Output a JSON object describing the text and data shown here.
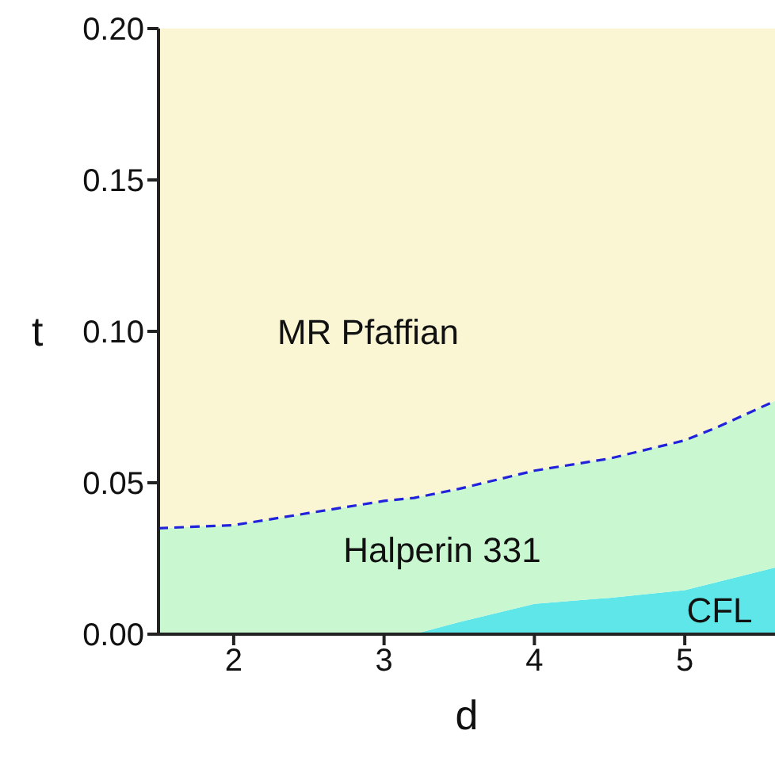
{
  "chart_data": {
    "type": "area",
    "stacked": true,
    "xlabel": "d",
    "ylabel": "t",
    "x": [
      1.5,
      2,
      2.5,
      3,
      3.2,
      3.5,
      4,
      4.5,
      5,
      5.2,
      5.6
    ],
    "series": [
      {
        "name": "CFL",
        "color": "#5ee6e8",
        "values": [
          0,
          0,
          0,
          0,
          0,
          0.004,
          0.01,
          0.012,
          0.0145,
          0.017,
          0.022
        ]
      },
      {
        "name": "Halperin 331",
        "color": "#c8f7d0",
        "values": [
          0.035,
          0.036,
          0.04,
          0.044,
          0.045,
          0.044,
          0.044,
          0.046,
          0.0495,
          0.051,
          0.055
        ]
      },
      {
        "name": "MR Pfaffian",
        "color": "#faf6d4",
        "values": [
          0.165,
          0.164,
          0.16,
          0.156,
          0.155,
          0.152,
          0.146,
          0.142,
          0.136,
          0.132,
          0.123
        ]
      },
      {
        "type": "line",
        "color": "#2222dd",
        "line_style": "dashed",
        "marker": "none",
        "values": [
          0.035,
          0.036,
          0.04,
          0.044,
          0.045,
          0.048,
          0.054,
          0.058,
          0.064,
          0.068,
          0.077
        ]
      }
    ],
    "xlim": [
      1.5,
      5.6
    ],
    "xticks": [
      2,
      3,
      4,
      5
    ],
    "ylim": [
      0,
      0.2
    ],
    "yticks": [
      {
        "value": 0,
        "label": "0.00"
      },
      {
        "value": 0.05,
        "label": "0.05"
      },
      {
        "value": 0.1,
        "label": "0.10"
      },
      {
        "value": 0.15,
        "label": "0.15"
      },
      {
        "value": 0.2,
        "label": "0.20"
      }
    ],
    "grid": false,
    "legend": false
  }
}
